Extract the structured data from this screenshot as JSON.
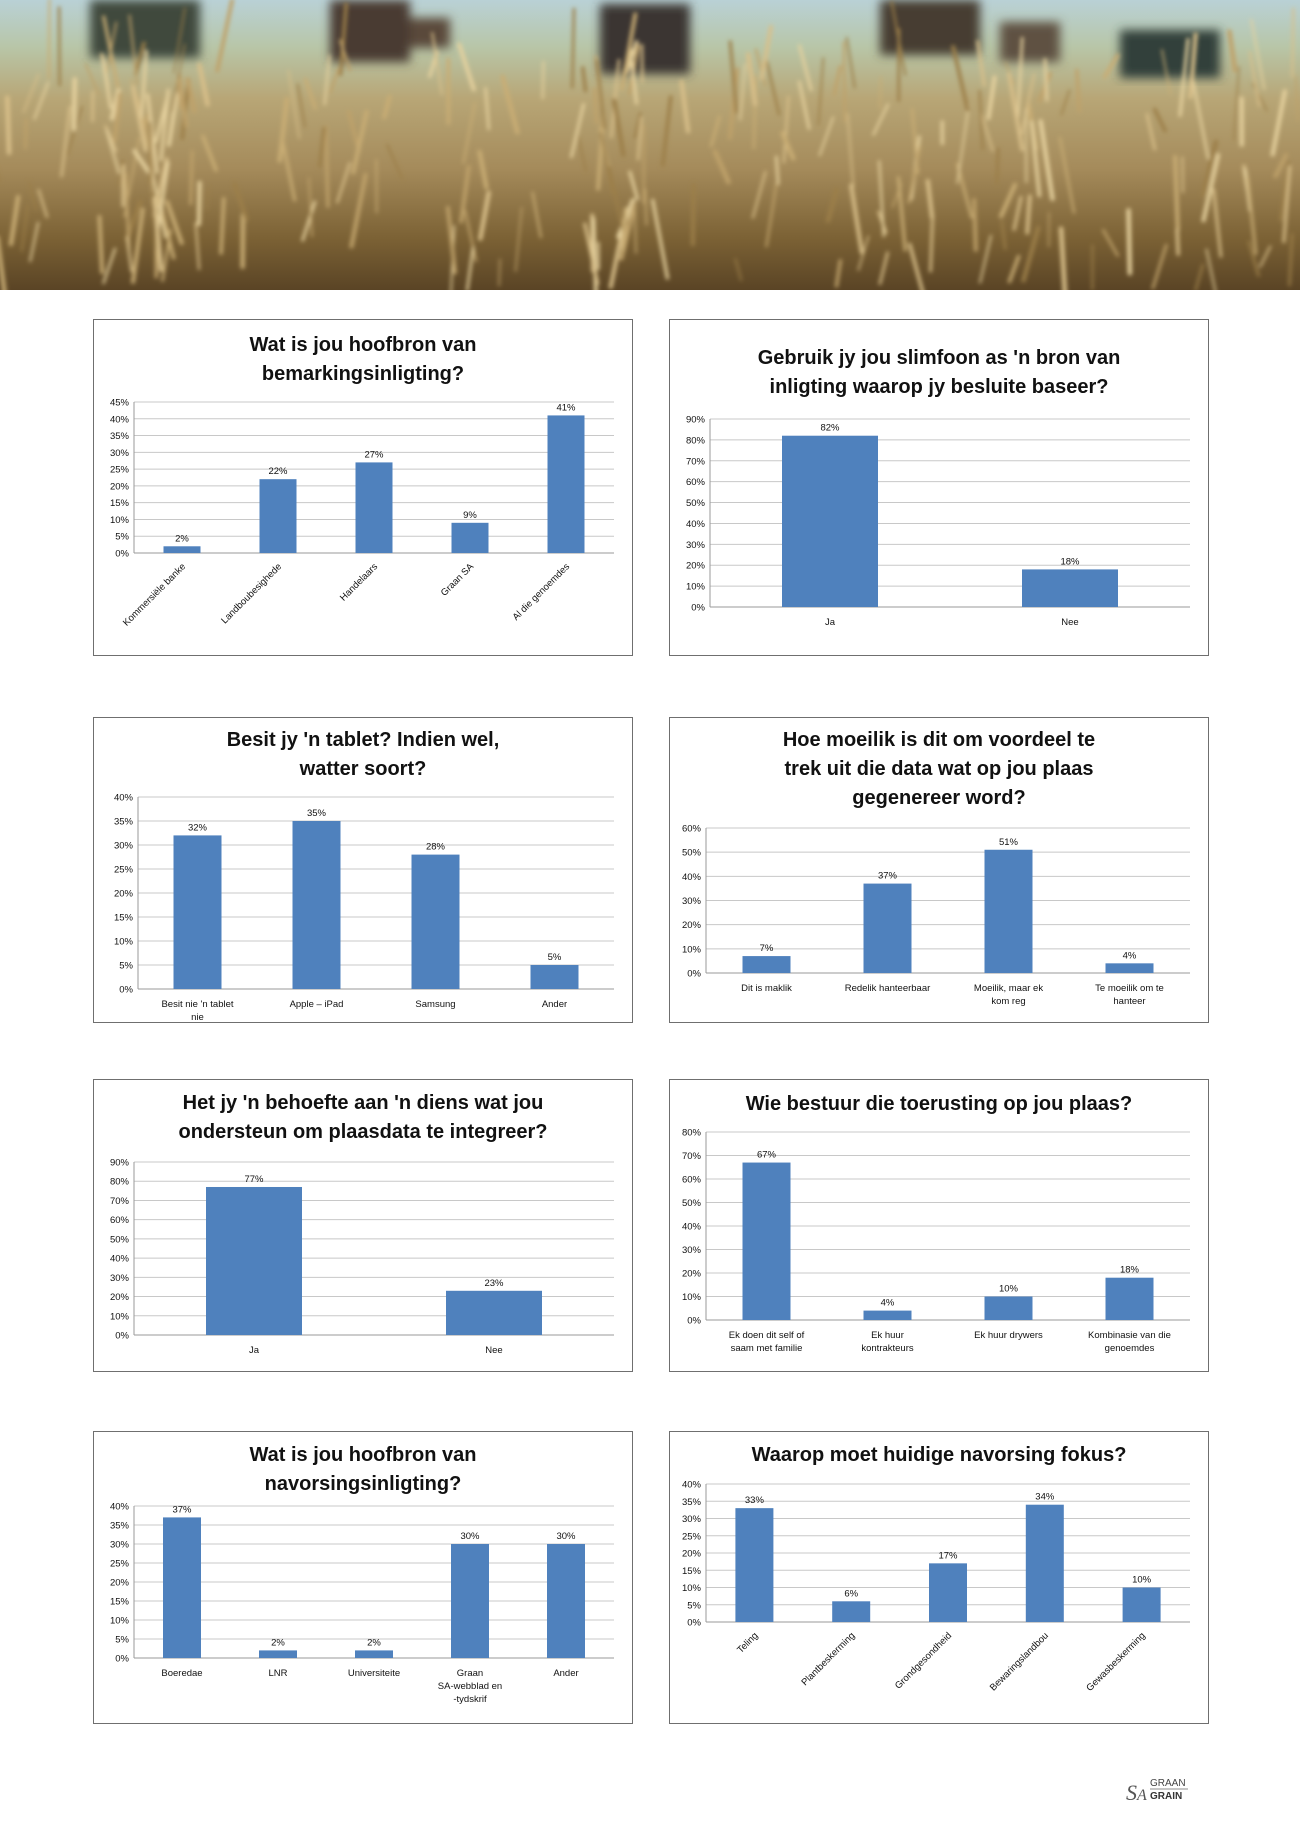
{
  "colors": {
    "bar": "#4f81bd",
    "grid": "#c8c8c8",
    "border": "#6f6f6f",
    "text": "#111111"
  },
  "brand": {
    "line1": "GRAAN",
    "line2": "GRAIN",
    "mark": "SA"
  },
  "chart_data": [
    {
      "type": "bar",
      "title": "Wat is jou hoofbron van\nbemarkingsinligting?",
      "categories": [
        "Kommersiële banke",
        "Landboubesighede",
        "Handelaars",
        "Graan SA",
        "Al die genoemdes"
      ],
      "values": [
        2,
        22,
        27,
        9,
        41
      ],
      "value_labels": [
        "2%",
        "22%",
        "27%",
        "9%",
        "41%"
      ],
      "yticks": [
        "0%",
        "5%",
        "10%",
        "15%",
        "20%",
        "25%",
        "30%",
        "35%",
        "40%",
        "45%"
      ],
      "ylim": [
        0,
        45
      ],
      "rotate_labels": true,
      "grid": true,
      "xlabel": "",
      "ylabel": ""
    },
    {
      "type": "bar",
      "title": "Gebruik jy jou slimfoon as 'n bron van\ninligting waarop jy besluite baseer?",
      "categories": [
        "Ja",
        "Nee"
      ],
      "values": [
        82,
        18
      ],
      "value_labels": [
        "82%",
        "18%"
      ],
      "yticks": [
        "0%",
        "10%",
        "20%",
        "30%",
        "40%",
        "50%",
        "60%",
        "70%",
        "80%",
        "90%"
      ],
      "ylim": [
        0,
        90
      ],
      "rotate_labels": false,
      "grid": true,
      "xlabel": "",
      "ylabel": ""
    },
    {
      "type": "bar",
      "title": "Besit jy 'n tablet? Indien wel,\nwatter soort?",
      "categories": [
        "Besit nie 'n tablet nie",
        "Apple – iPad",
        "Samsung",
        "Ander"
      ],
      "values": [
        32,
        35,
        28,
        5
      ],
      "value_labels": [
        "32%",
        "35%",
        "28%",
        "5%"
      ],
      "yticks": [
        "0%",
        "5%",
        "10%",
        "15%",
        "20%",
        "25%",
        "30%",
        "35%",
        "40%"
      ],
      "ylim": [
        0,
        40
      ],
      "rotate_labels": false,
      "grid": true,
      "xlabel": "",
      "ylabel": ""
    },
    {
      "type": "bar",
      "title": "Hoe moeilik is dit om voordeel te\ntrek uit die data wat op jou plaas\ngegenereer word?",
      "categories": [
        "Dit is maklik",
        "Redelik hanteerbaar",
        "Moeilik, maar ek kom reg",
        "Te moeilik om te hanteer"
      ],
      "values": [
        7,
        37,
        51,
        4
      ],
      "value_labels": [
        "7%",
        "37%",
        "51%",
        "4%"
      ],
      "yticks": [
        "0%",
        "10%",
        "20%",
        "30%",
        "40%",
        "50%",
        "60%"
      ],
      "ylim": [
        0,
        60
      ],
      "rotate_labels": false,
      "grid": true,
      "xlabel": "",
      "ylabel": ""
    },
    {
      "type": "bar",
      "title": "Het jy 'n behoefte aan 'n diens wat jou\nondersteun om plaasdata te integreer?",
      "categories": [
        "Ja",
        "Nee"
      ],
      "values": [
        77,
        23
      ],
      "value_labels": [
        "77%",
        "23%"
      ],
      "yticks": [
        "0%",
        "10%",
        "20%",
        "30%",
        "40%",
        "50%",
        "60%",
        "70%",
        "80%",
        "90%"
      ],
      "ylim": [
        0,
        90
      ],
      "rotate_labels": false,
      "grid": true,
      "xlabel": "",
      "ylabel": ""
    },
    {
      "type": "bar",
      "title": "Wie bestuur die toerusting op jou plaas?",
      "categories": [
        "Ek doen dit self of saam met familie",
        "Ek huur kontrakteurs",
        "Ek huur drywers",
        "Kombinasie van die genoemdes"
      ],
      "values": [
        67,
        4,
        10,
        18
      ],
      "value_labels": [
        "67%",
        "4%",
        "10%",
        "18%"
      ],
      "yticks": [
        "0%",
        "10%",
        "20%",
        "30%",
        "40%",
        "50%",
        "60%",
        "70%",
        "80%"
      ],
      "ylim": [
        0,
        80
      ],
      "rotate_labels": false,
      "grid": true,
      "xlabel": "",
      "ylabel": ""
    },
    {
      "type": "bar",
      "title": "Wat is jou hoofbron van\nnavorsingsinligting?",
      "categories": [
        "Boeredae",
        "LNR",
        "Universiteite",
        "Graan SA-webblad en -tydskrif",
        "Ander"
      ],
      "values": [
        37,
        2,
        2,
        30,
        30
      ],
      "value_labels": [
        "37%",
        "2%",
        "2%",
        "30%",
        "30%"
      ],
      "yticks": [
        "0%",
        "5%",
        "10%",
        "15%",
        "20%",
        "25%",
        "30%",
        "35%",
        "40%"
      ],
      "ylim": [
        0,
        40
      ],
      "rotate_labels": false,
      "grid": true,
      "xlabel": "",
      "ylabel": ""
    },
    {
      "type": "bar",
      "title": "Waarop moet huidige navorsing fokus?",
      "categories": [
        "Teling",
        "Plantbeskerming",
        "Grondgesondheid",
        "Bewaringslandbou",
        "Gewasbeskerming"
      ],
      "values": [
        33,
        6,
        17,
        34,
        10
      ],
      "value_labels": [
        "33%",
        "6%",
        "17%",
        "34%",
        "10%"
      ],
      "yticks": [
        "0%",
        "5%",
        "10%",
        "15%",
        "20%",
        "25%",
        "30%",
        "35%",
        "40%"
      ],
      "ylim": [
        0,
        40
      ],
      "rotate_labels": true,
      "grid": true,
      "xlabel": "",
      "ylabel": ""
    }
  ]
}
